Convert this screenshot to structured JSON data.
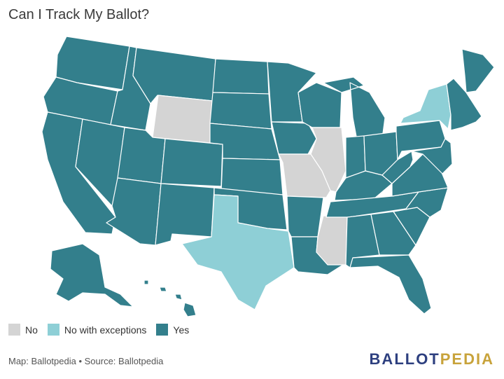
{
  "title": "Can I Track My Ballot?",
  "colors": {
    "no": "#d4d4d4",
    "exceptions": "#8ecfd6",
    "yes": "#337f8c"
  },
  "legend": [
    {
      "key": "no",
      "label": "No"
    },
    {
      "key": "exceptions",
      "label": "No with exceptions"
    },
    {
      "key": "yes",
      "label": "Yes"
    }
  ],
  "states": {
    "WA": "yes",
    "OR": "yes",
    "CA": "yes",
    "ID": "yes",
    "NV": "yes",
    "MT": "yes",
    "WY": "no",
    "UT": "yes",
    "AZ": "yes",
    "CO": "yes",
    "NM": "yes",
    "ND": "yes",
    "SD": "yes",
    "NE": "yes",
    "KS": "yes",
    "OK": "yes",
    "TX": "exceptions",
    "MN": "yes",
    "IA": "yes",
    "MO": "no",
    "AR": "yes",
    "LA": "yes",
    "WI": "yes",
    "IL": "no",
    "MS": "no",
    "MI": "yes",
    "IN": "yes",
    "KY": "yes",
    "TN": "yes",
    "AL": "yes",
    "OH": "yes",
    "WV": "yes",
    "GA": "yes",
    "FL": "yes",
    "SC": "yes",
    "NC": "yes",
    "VA": "yes",
    "PA": "yes",
    "NY": "exceptions",
    "ME": "yes",
    "NE_states": "yes",
    "AK": "yes",
    "HI": "yes"
  },
  "footer": "Map: Ballotpedia • Source: Ballotpedia",
  "brand": {
    "part1": "BALLOT",
    "part2": "PEDIA"
  }
}
